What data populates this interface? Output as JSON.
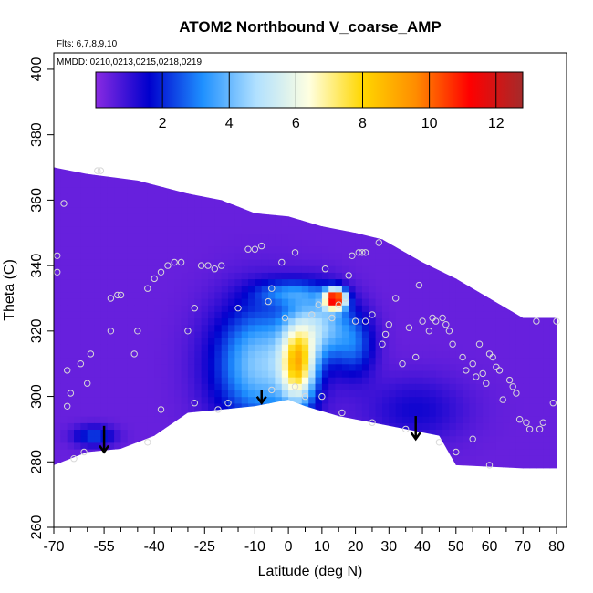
{
  "chart_data": {
    "type": "heatmap",
    "title": "ATOM2 Northbound V_coarse_AMP",
    "flights_label": "Flts: 6,7,8,9,10",
    "mmdd_label": "MMDD: 0210,0213,0215,0218,0219",
    "xlabel": "Latitude (deg N)",
    "ylabel": "Theta (C)",
    "xlim": [
      -70,
      83
    ],
    "ylim": [
      260,
      405
    ],
    "xticks": [
      -70,
      -55,
      -40,
      -25,
      -10,
      0,
      10,
      20,
      30,
      40,
      50,
      60,
      70,
      80
    ],
    "xticks_minor": [
      -65,
      -60,
      -50,
      -45,
      -35,
      -30,
      -20,
      -15,
      -5,
      5,
      15,
      25,
      35,
      45,
      55,
      65,
      75
    ],
    "yticks": [
      260,
      280,
      300,
      320,
      340,
      360,
      380,
      400
    ],
    "colorbar": {
      "range": [
        0,
        12.8
      ],
      "ticks": [
        2,
        4,
        6,
        8,
        10,
        12
      ],
      "stops": [
        "#8a2be2",
        "#0000cd",
        "#1e90ff",
        "#b0e0ff",
        "#ffffe0",
        "#ffd700",
        "#ff8c00",
        "#ff0000",
        "#a52a2a"
      ]
    },
    "upper_boundary": [
      [
        -70,
        370
      ],
      [
        -60,
        368
      ],
      [
        -45,
        366
      ],
      [
        -30,
        362
      ],
      [
        -20,
        360
      ],
      [
        -10,
        356
      ],
      [
        0,
        355
      ],
      [
        10,
        352
      ],
      [
        20,
        350
      ],
      [
        28,
        348
      ],
      [
        40,
        341
      ],
      [
        50,
        336
      ],
      [
        60,
        330
      ],
      [
        70,
        324
      ],
      [
        80,
        324
      ]
    ],
    "lower_boundary": [
      [
        -70,
        279
      ],
      [
        -60,
        283
      ],
      [
        -50,
        284
      ],
      [
        -40,
        288
      ],
      [
        -30,
        295
      ],
      [
        -20,
        296
      ],
      [
        -10,
        297
      ],
      [
        0,
        299
      ],
      [
        5,
        297
      ],
      [
        15,
        294
      ],
      [
        30,
        291
      ],
      [
        45,
        288
      ],
      [
        50,
        279
      ],
      [
        70,
        278
      ],
      [
        80,
        278
      ]
    ],
    "background_value": 0.4,
    "features": [
      {
        "lat": -8,
        "theta": 310,
        "value": 4.0,
        "sx": 14,
        "sy": 18
      },
      {
        "lat": 3,
        "theta": 310,
        "value": 6.0,
        "sx": 5,
        "sy": 12
      },
      {
        "lat": 10,
        "theta": 322,
        "value": 3.5,
        "sx": 8,
        "sy": 10
      },
      {
        "lat": 14,
        "theta": 330,
        "value": 10.5,
        "sx": 3,
        "sy": 3
      },
      {
        "lat": 20,
        "theta": 316,
        "value": 2.0,
        "sx": 6,
        "sy": 10
      },
      {
        "lat": -58,
        "theta": 288,
        "value": 2.0,
        "sx": 6,
        "sy": 3
      },
      {
        "lat": 0,
        "theta": 332,
        "value": 2.0,
        "sx": 10,
        "sy": 4
      },
      {
        "lat": 38,
        "theta": 296,
        "value": 1.0,
        "sx": 15,
        "sy": 10
      }
    ],
    "sample_points": [
      [
        -69,
        343
      ],
      [
        -69,
        338
      ],
      [
        -67,
        359
      ],
      [
        -66,
        308
      ],
      [
        -66,
        297
      ],
      [
        -65,
        301
      ],
      [
        -64,
        281
      ],
      [
        -62,
        310
      ],
      [
        -60,
        304
      ],
      [
        -59,
        313
      ],
      [
        -61,
        283
      ],
      [
        -57,
        369
      ],
      [
        -56,
        369
      ],
      [
        -53,
        320
      ],
      [
        -53,
        330
      ],
      [
        -51,
        331
      ],
      [
        -50,
        331
      ],
      [
        -46,
        313
      ],
      [
        -45,
        320
      ],
      [
        -42,
        286
      ],
      [
        -42,
        333
      ],
      [
        -40,
        336
      ],
      [
        -38,
        338
      ],
      [
        -36,
        340
      ],
      [
        -34,
        341
      ],
      [
        -32,
        341
      ],
      [
        -30,
        320
      ],
      [
        -28,
        327
      ],
      [
        -26,
        340
      ],
      [
        -24,
        340
      ],
      [
        -22,
        339
      ],
      [
        -20,
        340
      ],
      [
        -21,
        296
      ],
      [
        -18,
        298
      ],
      [
        -15,
        327
      ],
      [
        -12,
        345
      ],
      [
        -10,
        345
      ],
      [
        -8,
        346
      ],
      [
        -6,
        329
      ],
      [
        -5,
        333
      ],
      [
        -2,
        341
      ],
      [
        2,
        344
      ],
      [
        -1,
        324
      ],
      [
        2,
        303
      ],
      [
        5,
        300
      ],
      [
        7,
        325
      ],
      [
        9,
        328
      ],
      [
        11,
        339
      ],
      [
        13,
        324
      ],
      [
        15,
        328
      ],
      [
        17,
        330
      ],
      [
        18,
        337
      ],
      [
        19,
        343
      ],
      [
        21,
        344
      ],
      [
        22,
        344
      ],
      [
        16,
        295
      ],
      [
        20,
        323
      ],
      [
        23,
        344
      ],
      [
        23,
        323
      ],
      [
        25,
        325
      ],
      [
        27,
        347
      ],
      [
        28,
        316
      ],
      [
        29,
        319
      ],
      [
        30,
        322
      ],
      [
        32,
        330
      ],
      [
        34,
        310
      ],
      [
        36,
        321
      ],
      [
        38,
        312
      ],
      [
        39,
        334
      ],
      [
        40,
        323
      ],
      [
        42,
        320
      ],
      [
        43,
        324
      ],
      [
        44,
        323
      ],
      [
        46,
        324
      ],
      [
        47,
        322
      ],
      [
        48,
        320
      ],
      [
        49,
        316
      ],
      [
        52,
        312
      ],
      [
        53,
        308
      ],
      [
        55,
        310
      ],
      [
        56,
        306
      ],
      [
        57,
        316
      ],
      [
        58,
        307
      ],
      [
        59,
        304
      ],
      [
        60,
        313
      ],
      [
        61,
        312
      ],
      [
        62,
        309
      ],
      [
        63,
        308
      ],
      [
        64,
        299
      ],
      [
        66,
        305
      ],
      [
        67,
        303
      ],
      [
        68,
        301
      ],
      [
        69,
        293
      ],
      [
        71,
        292
      ],
      [
        72,
        290
      ],
      [
        74,
        323
      ],
      [
        75,
        290
      ],
      [
        76,
        292
      ],
      [
        79,
        298
      ],
      [
        80,
        323
      ],
      [
        60,
        279
      ],
      [
        55,
        287
      ],
      [
        25,
        292
      ],
      [
        35,
        290
      ],
      [
        45,
        286
      ],
      [
        50,
        283
      ],
      [
        -38,
        296
      ],
      [
        -28,
        298
      ],
      [
        -5,
        302
      ],
      [
        10,
        300
      ]
    ],
    "arrows": [
      [
        -55,
        291,
        283
      ],
      [
        -8,
        302,
        298
      ],
      [
        38,
        294,
        287
      ]
    ]
  }
}
